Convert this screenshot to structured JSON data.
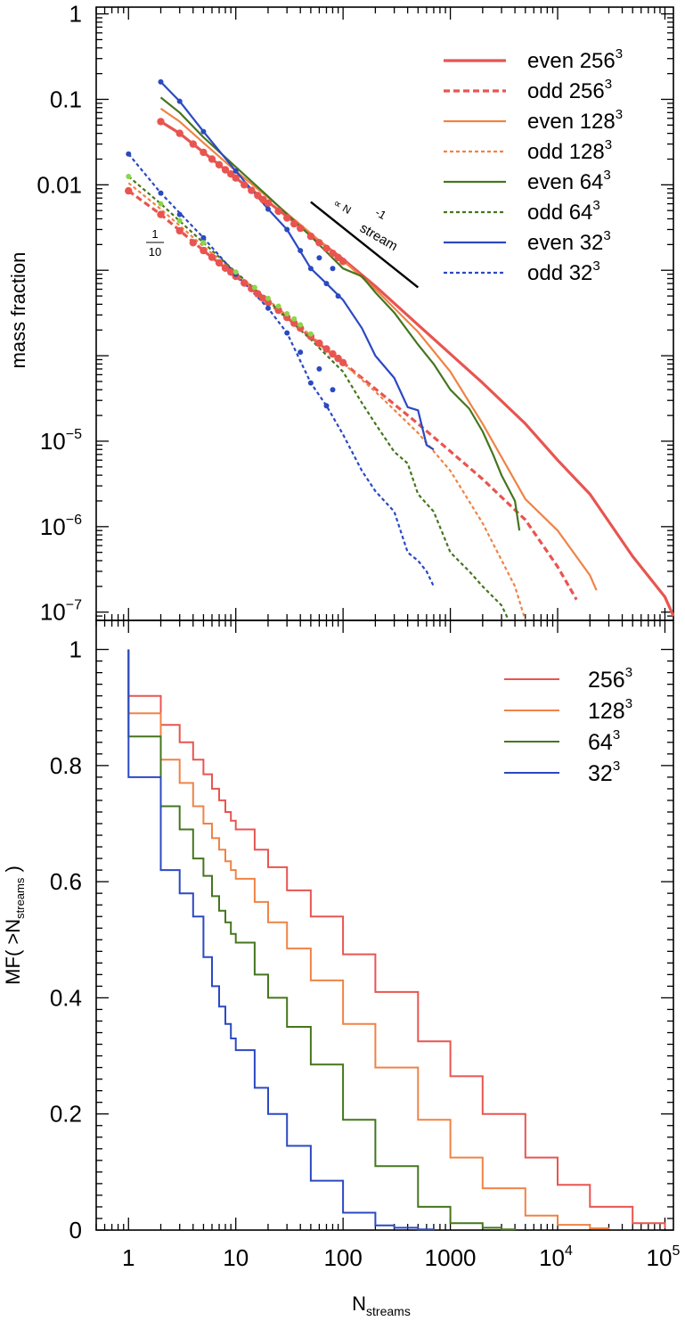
{
  "colors": {
    "c256": "#e85550",
    "c128": "#ef8346",
    "c64": "#45761e",
    "c32": "#2b49c2",
    "light64": "#8ad64a",
    "axis": "#000000"
  },
  "chart_data": [
    {
      "type": "line",
      "title": "",
      "xlabel": "",
      "ylabel": "mass fraction",
      "xscale": "log",
      "yscale": "log",
      "xlim": [
        0.5,
        120000
      ],
      "ylim": [
        8e-08,
        1.2
      ],
      "ytick_labels": [
        "1",
        "0.1",
        "0.01",
        "10^-5",
        "10^-6",
        "10^-7"
      ],
      "legend": {
        "placement": "top-right",
        "entries": [
          {
            "base": "even 256",
            "sup": "3"
          },
          {
            "base": "odd 256",
            "sup": "3"
          },
          {
            "base": "even 128",
            "sup": "3"
          },
          {
            "base": "odd 128",
            "sup": "3"
          },
          {
            "base": "even 64",
            "sup": "3"
          },
          {
            "base": "odd 64",
            "sup": "3"
          },
          {
            "base": "even 32",
            "sup": "3"
          },
          {
            "base": "odd 32",
            "sup": "3"
          }
        ]
      },
      "annotations": {
        "fraction_num": "1",
        "fraction_den": "10",
        "slope_prefix": "∝ N",
        "slope_sub": "stream",
        "slope_sup": "-1"
      },
      "slope_line": {
        "x": [
          50,
          500
        ],
        "y": [
          0.0063,
          0.00063
        ]
      },
      "series": [
        {
          "name": "even 256",
          "style": "solid-thick",
          "x": [
            2,
            3,
            5,
            10,
            20,
            50,
            100,
            200,
            500,
            1000,
            2000,
            5000,
            10000,
            20000,
            50000,
            100000,
            120000
          ],
          "y": [
            0.055,
            0.04,
            0.024,
            0.012,
            0.0063,
            0.0026,
            0.00135,
            0.00065,
            0.00023,
            0.000105,
            4.8e-05,
            1.6e-05,
            6e-06,
            2.4e-06,
            4.5e-07,
            1.5e-07,
            9e-08
          ]
        },
        {
          "name": "odd 256",
          "style": "dashed-thick",
          "x": [
            1,
            2,
            5,
            10,
            20,
            50,
            100,
            200,
            500,
            1000,
            2000,
            5000,
            10000,
            15000
          ],
          "y": [
            0.0085,
            0.0045,
            0.0017,
            0.00085,
            0.00042,
            0.000165,
            8.3e-05,
            4.1e-05,
            1.6e-05,
            7.6e-06,
            3.6e-06,
            1.2e-06,
            3.4e-07,
            1.4e-07
          ]
        },
        {
          "name": "even 128",
          "style": "solid",
          "x": [
            2,
            3,
            5,
            10,
            20,
            50,
            100,
            200,
            500,
            1000,
            2000,
            5000,
            10000,
            20000,
            23000
          ],
          "y": [
            0.078,
            0.055,
            0.031,
            0.0145,
            0.0071,
            0.0027,
            0.0013,
            0.0006,
            0.00019,
            6.5e-05,
            1.6e-05,
            2.1e-06,
            9e-07,
            2.7e-07,
            1.8e-07
          ]
        },
        {
          "name": "odd 128",
          "style": "dashed",
          "x": [
            1,
            2,
            5,
            10,
            20,
            50,
            100,
            200,
            500,
            1000,
            2000,
            4000,
            5000
          ],
          "y": [
            0.0105,
            0.0052,
            0.0019,
            0.00093,
            0.00045,
            0.000172,
            8.2e-05,
            3.8e-05,
            1.25e-05,
            4.5e-06,
            1.1e-06,
            2e-07,
            8e-08
          ]
        },
        {
          "name": "even 64",
          "style": "solid",
          "x": [
            2,
            3,
            5,
            10,
            20,
            50,
            100,
            150,
            200,
            300,
            500,
            700,
            1000,
            1500,
            2000,
            2500,
            3000,
            4000,
            4400
          ],
          "y": [
            0.105,
            0.07,
            0.036,
            0.0162,
            0.0073,
            0.0025,
            0.00105,
            0.00085,
            0.00055,
            0.00032,
            0.000135,
            8e-05,
            4e-05,
            2.4e-05,
            1.3e-05,
            7e-06,
            4e-06,
            2e-06,
            9e-07
          ]
        },
        {
          "name": "odd 64",
          "style": "dashed",
          "x": [
            1,
            2,
            5,
            10,
            20,
            50,
            100,
            150,
            200,
            300,
            400,
            500,
            700,
            1000,
            1500,
            2000,
            3000,
            3500
          ],
          "y": [
            0.0125,
            0.006,
            0.0021,
            0.00095,
            0.00044,
            0.000155,
            6.5e-05,
            2.8e-05,
            1.6e-05,
            7.5e-06,
            5.5e-06,
            2.4e-06,
            1.5e-06,
            5e-07,
            3e-07,
            2e-07,
            1.2e-07,
            8e-08
          ]
        },
        {
          "name": "even 32",
          "style": "solid",
          "x": [
            2,
            3,
            5,
            10,
            20,
            30,
            50,
            70,
            100,
            150,
            200,
            300,
            400,
            500,
            600,
            700
          ],
          "y": [
            0.16,
            0.095,
            0.042,
            0.0145,
            0.0052,
            0.003,
            0.00105,
            0.0007,
            0.00045,
            0.00021,
            0.0001,
            5.5e-05,
            2.5e-05,
            2.3e-05,
            9e-06,
            8e-06
          ]
        },
        {
          "name": "odd 32",
          "style": "dashed",
          "x": [
            1,
            2,
            5,
            10,
            20,
            30,
            50,
            70,
            100,
            150,
            200,
            300,
            400,
            500,
            600,
            700
          ],
          "y": [
            0.023,
            0.008,
            0.0024,
            0.0009,
            0.00036,
            0.000185,
            4.8e-05,
            2.6e-05,
            1.2e-05,
            4.5e-06,
            2.6e-06,
            1.5e-06,
            5e-07,
            4e-07,
            3e-07,
            2e-07
          ]
        }
      ],
      "markers": [
        {
          "series": "even 256",
          "x": [
            2,
            3,
            4,
            5,
            6,
            7,
            8,
            9,
            10,
            12,
            14,
            16,
            18,
            20,
            25,
            30,
            35,
            40,
            50,
            60,
            70,
            80,
            90,
            100
          ],
          "y": [
            0.055,
            0.04,
            0.03,
            0.024,
            0.02,
            0.0172,
            0.015,
            0.0134,
            0.012,
            0.01,
            0.0086,
            0.0075,
            0.0067,
            0.0061,
            0.0049,
            0.0041,
            0.0035,
            0.0031,
            0.0025,
            0.0021,
            0.0018,
            0.00158,
            0.00141,
            0.00127
          ]
        },
        {
          "series": "odd 256",
          "x": [
            1,
            2,
            3,
            4,
            5,
            6,
            7,
            8,
            9,
            10,
            12,
            14,
            16,
            18,
            20,
            25,
            30,
            35,
            40,
            50,
            60,
            70,
            80,
            90,
            100
          ],
          "y": [
            0.0085,
            0.0045,
            0.0029,
            0.0021,
            0.0017,
            0.00142,
            0.00122,
            0.00106,
            0.00095,
            0.00085,
            0.00071,
            0.00061,
            0.00053,
            0.00047,
            0.00042,
            0.00034,
            0.00028,
            0.00024,
            0.00021,
            0.000168,
            0.00014,
            0.00012,
            0.000105,
            9.3e-05,
            8.3e-05
          ]
        },
        {
          "series": "even 32",
          "x": [
            2,
            3,
            5,
            10,
            20,
            30,
            40,
            50,
            60,
            70,
            80,
            90
          ],
          "y": [
            0.16,
            0.095,
            0.042,
            0.0145,
            0.0052,
            0.003,
            0.0017,
            0.00105,
            0.0014,
            0.0007,
            0.00105,
            0.0005
          ]
        },
        {
          "series": "odd 32",
          "x": [
            1,
            2,
            3,
            5,
            10,
            20,
            30,
            40,
            50,
            60,
            70,
            80
          ],
          "y": [
            0.023,
            0.008,
            0.0045,
            0.0024,
            0.0009,
            0.00036,
            0.000185,
            0.00011,
            4.8e-05,
            7e-05,
            2.6e-05,
            4e-05
          ]
        },
        {
          "series": "odd 64 (light)",
          "x": [
            1,
            2,
            3,
            5,
            10,
            15,
            20,
            25,
            30,
            35,
            40,
            50
          ],
          "y": [
            0.0125,
            0.006,
            0.0038,
            0.0021,
            0.00095,
            0.00063,
            0.00047,
            0.00038,
            0.00031,
            0.00027,
            0.00023,
            0.00018
          ]
        }
      ]
    },
    {
      "type": "line",
      "title": "",
      "xlabel_base": "N",
      "xlabel_sub": "streams",
      "ylabel_base": "MF( >N",
      "ylabel_sub": "streams",
      "ylabel_end": " )",
      "xscale": "log",
      "yscale": "linear",
      "xlim": [
        0.5,
        120000
      ],
      "ylim": [
        0,
        1.05
      ],
      "ytick_labels": [
        "0",
        "0.2",
        "0.4",
        "0.6",
        "0.8",
        "1"
      ],
      "xtick_labels": [
        {
          "base": "1",
          "sup": ""
        },
        {
          "base": "10",
          "sup": ""
        },
        {
          "base": "100",
          "sup": ""
        },
        {
          "base": "1000",
          "sup": ""
        },
        {
          "base": "10",
          "sup": "4"
        },
        {
          "base": "10",
          "sup": "5"
        }
      ],
      "legend": {
        "placement": "top-right",
        "entries": [
          {
            "base": "256",
            "sup": "3"
          },
          {
            "base": "128",
            "sup": "3"
          },
          {
            "base": "64",
            "sup": "3"
          },
          {
            "base": "32",
            "sup": "3"
          }
        ]
      },
      "series": [
        {
          "name": "256^3",
          "x": [
            1,
            1,
            2,
            3,
            4,
            5,
            6,
            7,
            8,
            9,
            10,
            15,
            20,
            30,
            50,
            100,
            200,
            500,
            1000,
            2000,
            5000,
            10000,
            20000,
            50000,
            100000
          ],
          "y": [
            1.0,
            0.92,
            0.87,
            0.84,
            0.81,
            0.785,
            0.76,
            0.74,
            0.72,
            0.705,
            0.69,
            0.655,
            0.625,
            0.585,
            0.54,
            0.475,
            0.41,
            0.325,
            0.265,
            0.2,
            0.125,
            0.078,
            0.04,
            0.012,
            0.003
          ]
        },
        {
          "name": "128^3",
          "x": [
            1,
            1,
            2,
            3,
            4,
            5,
            6,
            7,
            8,
            9,
            10,
            15,
            20,
            30,
            50,
            100,
            200,
            500,
            1000,
            2000,
            5000,
            10000,
            20000,
            30000
          ],
          "y": [
            1.0,
            0.89,
            0.81,
            0.77,
            0.73,
            0.7,
            0.675,
            0.655,
            0.635,
            0.62,
            0.605,
            0.565,
            0.53,
            0.485,
            0.43,
            0.355,
            0.28,
            0.19,
            0.125,
            0.072,
            0.025,
            0.009,
            0.003,
            0.001
          ]
        },
        {
          "name": "64^3",
          "x": [
            1,
            1,
            2,
            3,
            4,
            5,
            6,
            7,
            8,
            9,
            10,
            15,
            20,
            30,
            50,
            100,
            200,
            500,
            1000,
            2000,
            3000,
            4000
          ],
          "y": [
            1.0,
            0.85,
            0.73,
            0.69,
            0.64,
            0.61,
            0.575,
            0.55,
            0.53,
            0.51,
            0.495,
            0.44,
            0.4,
            0.35,
            0.285,
            0.19,
            0.11,
            0.04,
            0.012,
            0.004,
            0.001,
            0.0
          ]
        },
        {
          "name": "32^3",
          "x": [
            1,
            1,
            2,
            3,
            4,
            5,
            6,
            7,
            8,
            9,
            10,
            15,
            20,
            30,
            50,
            100,
            200,
            300,
            500,
            700
          ],
          "y": [
            1.0,
            0.78,
            0.62,
            0.58,
            0.54,
            0.47,
            0.42,
            0.385,
            0.355,
            0.33,
            0.31,
            0.245,
            0.2,
            0.145,
            0.085,
            0.03,
            0.008,
            0.004,
            0.001,
            0.0
          ]
        }
      ]
    }
  ]
}
